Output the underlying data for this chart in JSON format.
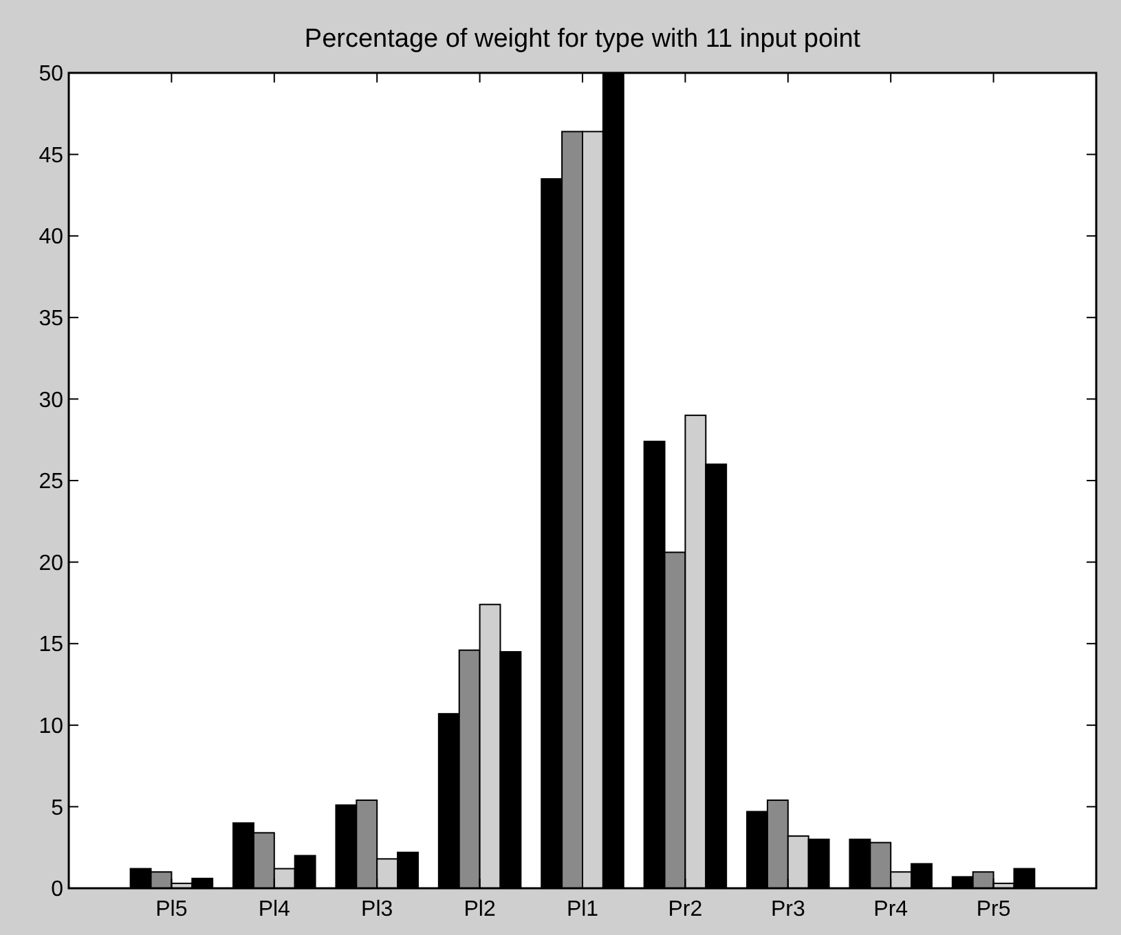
{
  "chart_data": {
    "type": "bar",
    "title": "Percentage of weight for type with 11 input point",
    "categories": [
      "Pl5",
      "Pl4",
      "Pl3",
      "Pl2",
      "Pl1",
      "Pr2",
      "Pr3",
      "Pr4",
      "Pr5"
    ],
    "series": [
      {
        "color": "#000000",
        "values": [
          1.2,
          4.0,
          5.1,
          10.7,
          43.5,
          27.4,
          4.7,
          3.0,
          0.7
        ]
      },
      {
        "color": "#8a8a8a",
        "values": [
          1.0,
          3.4,
          5.4,
          14.6,
          46.4,
          20.6,
          5.4,
          2.8,
          1.0
        ]
      },
      {
        "color": "#cfcfcf",
        "values": [
          0.3,
          1.2,
          1.8,
          17.4,
          46.4,
          29.0,
          3.2,
          1.0,
          0.3
        ]
      },
      {
        "color": "#000000",
        "values": [
          0.6,
          2.0,
          2.2,
          14.5,
          50,
          26.0,
          3.0,
          1.5,
          1.2
        ]
      }
    ],
    "ylim": [
      0,
      50
    ],
    "yticks": [
      0,
      5,
      10,
      15,
      20,
      25,
      30,
      35,
      40,
      45,
      50
    ],
    "grid": false
  }
}
